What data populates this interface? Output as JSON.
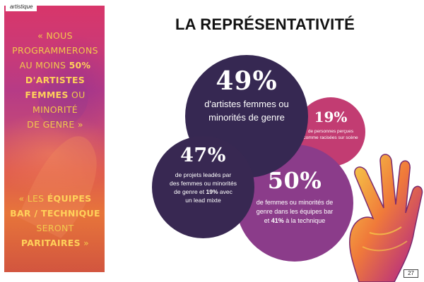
{
  "section_tag": "artistique",
  "headline": "LA REPRÉSENTATIVITÉ",
  "quote1": {
    "lines": [
      {
        "before": "« NOUS",
        "bold": "",
        "after": ""
      },
      {
        "before": "PROGRAMMERONS",
        "bold": "",
        "after": ""
      },
      {
        "before": "AU MOINS ",
        "bold": "50%",
        "after": ""
      },
      {
        "before": "",
        "bold": "D'ARTISTES",
        "after": ""
      },
      {
        "before": "",
        "bold": "FEMMES",
        "after": " OU"
      },
      {
        "before": "MINORITÉ",
        "bold": "",
        "after": ""
      },
      {
        "before": "DE GENRE »",
        "bold": "",
        "after": ""
      }
    ]
  },
  "quote2": {
    "lines": [
      {
        "before": "« LES ",
        "bold": "ÉQUIPES",
        "after": ""
      },
      {
        "before": "",
        "bold": "BAR / TECHNIQUE",
        "after": ""
      },
      {
        "before": "SERONT",
        "bold": "",
        "after": ""
      },
      {
        "before": "",
        "bold": "PARITAIRES",
        "after": " »"
      }
    ]
  },
  "stats": {
    "artists": {
      "value": "49%",
      "line1": "d'artistes femmes ou",
      "line2": "minorités de genre"
    },
    "racised": {
      "value": "19%",
      "line1": "de personnes perçues",
      "line2": "comme racisées sur scène"
    },
    "projects": {
      "value": "47%",
      "line1": "de projets leadés par",
      "line2": "des femmes ou minorités",
      "line3_before": "de genre et ",
      "line3_bold": "19%",
      "line3_after": " avec",
      "line4": "un lead mixte"
    },
    "teams": {
      "value": "50%",
      "line1": "de femmes ou minorités de",
      "line2": "genre dans les équipes bar",
      "line3_before": "et ",
      "line3_bold": "41%",
      "line3_after": " à la technique"
    }
  },
  "page_number": "27",
  "colors": {
    "dark_purple": "#362852",
    "pink": "#c23c72",
    "violet": "#8b3c8a",
    "gold": "#f2c94c"
  }
}
